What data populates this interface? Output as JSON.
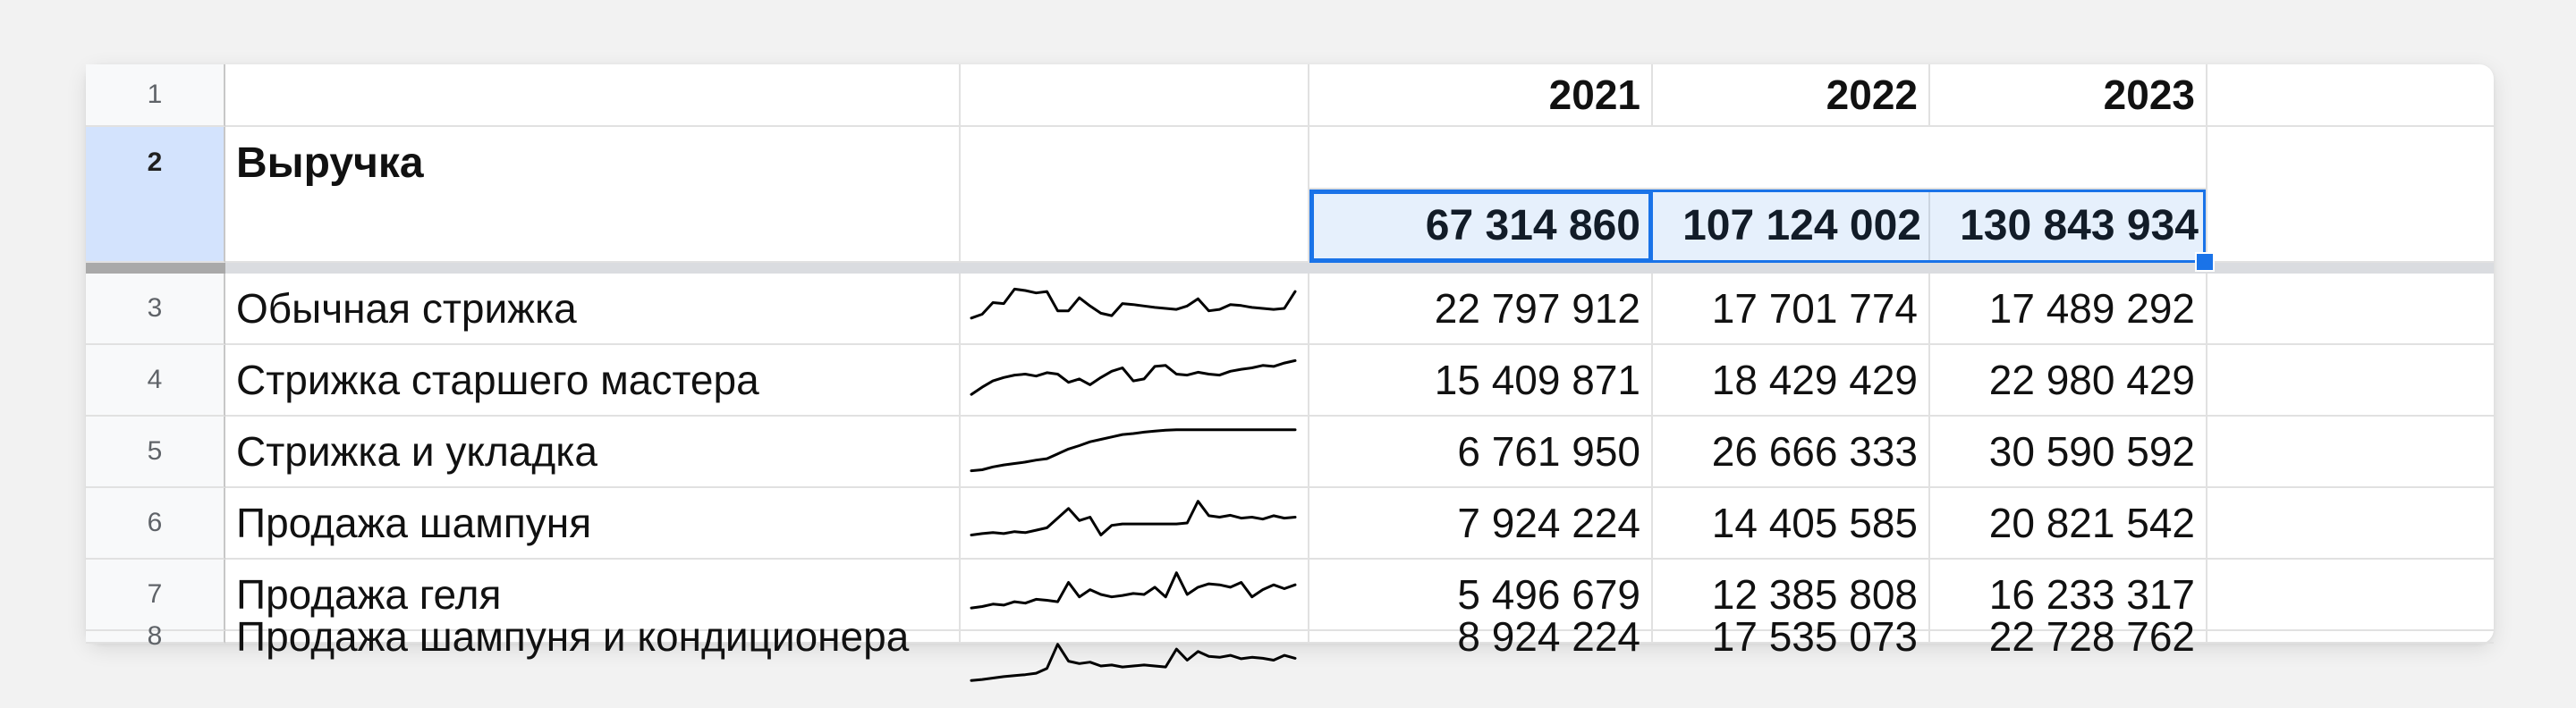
{
  "header_years": [
    "2021",
    "2022",
    "2023"
  ],
  "row_numbers": [
    "1",
    "2",
    "3",
    "4",
    "5",
    "6",
    "7",
    "8"
  ],
  "revenue": {
    "label": "Выручка",
    "values": [
      "67 314 860",
      "107 124 002",
      "130 843 934"
    ]
  },
  "rows": [
    {
      "label": "Обычная стрижка",
      "values": [
        "22 797 912",
        "17 701 774",
        "17 489 292"
      ],
      "sparkline": [
        0.3,
        0.38,
        0.62,
        0.6,
        0.9,
        0.87,
        0.82,
        0.85,
        0.45,
        0.45,
        0.72,
        0.55,
        0.4,
        0.35,
        0.6,
        0.58,
        0.55,
        0.52,
        0.5,
        0.48,
        0.55,
        0.7,
        0.45,
        0.48,
        0.58,
        0.56,
        0.52,
        0.5,
        0.48,
        0.5,
        0.85
      ]
    },
    {
      "label": "Стрижка старшего мастера",
      "values": [
        "15 409 871",
        "18 429 429",
        "22 980 429"
      ],
      "sparkline": [
        0.2,
        0.35,
        0.48,
        0.55,
        0.6,
        0.62,
        0.58,
        0.65,
        0.62,
        0.45,
        0.52,
        0.4,
        0.55,
        0.68,
        0.75,
        0.48,
        0.52,
        0.78,
        0.8,
        0.62,
        0.6,
        0.66,
        0.62,
        0.6,
        0.68,
        0.72,
        0.75,
        0.8,
        0.78,
        0.85,
        0.9
      ]
    },
    {
      "label": "Стрижка и укладка",
      "values": [
        "6 761 950",
        "26 666 333",
        "30 590 592"
      ],
      "sparkline": [
        0.1,
        0.12,
        0.18,
        0.22,
        0.25,
        0.28,
        0.32,
        0.35,
        0.45,
        0.55,
        0.62,
        0.7,
        0.75,
        0.8,
        0.85,
        0.87,
        0.9,
        0.92,
        0.94,
        0.95,
        0.95,
        0.95,
        0.95,
        0.95,
        0.95,
        0.95,
        0.95,
        0.95,
        0.95,
        0.95,
        0.95
      ]
    },
    {
      "label": "Продажа шампуня",
      "values": [
        "7 924 224",
        "14 405 585",
        "20 821 542"
      ],
      "sparkline": [
        0.25,
        0.28,
        0.3,
        0.28,
        0.32,
        0.3,
        0.35,
        0.4,
        0.6,
        0.8,
        0.55,
        0.62,
        0.25,
        0.45,
        0.48,
        0.48,
        0.48,
        0.48,
        0.48,
        0.48,
        0.5,
        0.95,
        0.65,
        0.62,
        0.66,
        0.6,
        0.62,
        0.58,
        0.65,
        0.6,
        0.62
      ]
    },
    {
      "label": "Продажа геля",
      "values": [
        "5 496 679",
        "12 385 808",
        "16 233 317"
      ],
      "sparkline": [
        0.22,
        0.25,
        0.3,
        0.28,
        0.35,
        0.32,
        0.4,
        0.38,
        0.35,
        0.75,
        0.45,
        0.6,
        0.5,
        0.45,
        0.48,
        0.52,
        0.5,
        0.65,
        0.45,
        0.95,
        0.5,
        0.65,
        0.72,
        0.7,
        0.65,
        0.75,
        0.45,
        0.6,
        0.7,
        0.62,
        0.7
      ]
    },
    {
      "label": "Продажа шампуня и кондиционера",
      "values": [
        "8 924 224",
        "17 535 073",
        "22 728 762"
      ],
      "sparkline": [
        0.2,
        0.22,
        0.25,
        0.28,
        0.3,
        0.32,
        0.35,
        0.45,
        0.95,
        0.6,
        0.55,
        0.58,
        0.5,
        0.52,
        0.48,
        0.5,
        0.52,
        0.5,
        0.48,
        0.85,
        0.62,
        0.8,
        0.7,
        0.68,
        0.72,
        0.65,
        0.68,
        0.66,
        0.62,
        0.72,
        0.66
      ]
    }
  ]
}
